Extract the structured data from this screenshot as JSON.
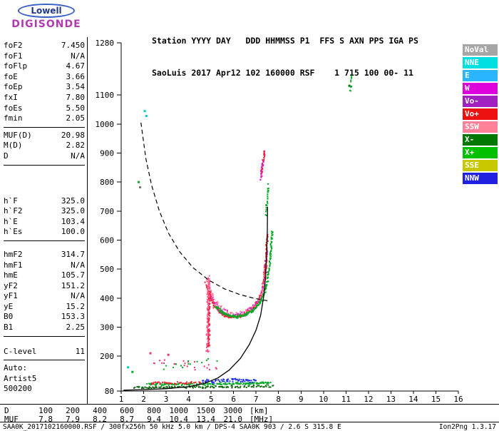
{
  "logo": {
    "line1": "Lowell",
    "line2": "DIGISONDE"
  },
  "header": {
    "line1": "Station YYYY DAY   DDD HHMMSS P1  FFS S AXN PPS IGA PS",
    "line2": "SaoLuis 2017 Apr12 102 160000 RSF    1 715 100 00- 11"
  },
  "params": {
    "groups": [
      {
        "rows": [
          [
            "foF2",
            "7.450"
          ],
          [
            "foF1",
            "N/A"
          ],
          [
            "foFlp",
            "4.67"
          ],
          [
            "foE",
            "3.66"
          ],
          [
            "foEp",
            "3.54"
          ],
          [
            "fxI",
            "7.80"
          ],
          [
            "foEs",
            "5.50"
          ],
          [
            "fmin",
            "2.05"
          ]
        ]
      },
      {
        "rows": [
          [
            "MUF(D)",
            "20.98"
          ],
          [
            "M(D)",
            "2.82"
          ],
          [
            "D",
            "N/A"
          ]
        ]
      },
      {
        "rows": [
          [
            "h`F",
            "325.0"
          ],
          [
            "h`F2",
            "325.0"
          ],
          [
            "h`E",
            "103.4"
          ],
          [
            "h`Es",
            "100.0"
          ]
        ]
      },
      {
        "rows": [
          [
            "hmF2",
            "314.7"
          ],
          [
            "hmF1",
            "N/A"
          ],
          [
            "hmE",
            "105.7"
          ],
          [
            "yF2",
            "151.2"
          ],
          [
            "yF1",
            "N/A"
          ],
          [
            "yE",
            "15.2"
          ],
          [
            "B0",
            "153.3"
          ],
          [
            "B1",
            "2.25"
          ]
        ]
      },
      {
        "rows": [
          [
            "C-level",
            "11"
          ]
        ]
      },
      {
        "rows": [
          [
            "Auto:",
            ""
          ],
          [
            "Artist5",
            ""
          ],
          [
            "500200",
            ""
          ]
        ]
      }
    ]
  },
  "legend": {
    "items": [
      {
        "label": "NoVal",
        "color": "#a6a6a6"
      },
      {
        "label": "NNE",
        "color": "#00e0e0"
      },
      {
        "label": "E",
        "color": "#2bb5ff"
      },
      {
        "label": "W",
        "color": "#dd00dd"
      },
      {
        "label": "Vo-",
        "color": "#a020c0"
      },
      {
        "label": "Vo+",
        "color": "#ee1111"
      },
      {
        "label": "SSW",
        "color": "#ff8099"
      },
      {
        "label": "X-",
        "color": "#007700"
      },
      {
        "label": "X+",
        "color": "#00c000"
      },
      {
        "label": "SSE",
        "color": "#c8c800"
      },
      {
        "label": "NNW",
        "color": "#2020e0"
      }
    ]
  },
  "distance_row": {
    "label": "D",
    "values": [
      "100",
      "200",
      "400",
      "600",
      "800",
      "1000",
      "1500",
      "3000"
    ],
    "unit": "[km]"
  },
  "muf_row": {
    "label": "MUF",
    "values": [
      "7.8",
      "7.9",
      "8.2",
      "8.7",
      "9.4",
      "10.4",
      "13.4",
      "21.0"
    ],
    "unit": "[MHz]"
  },
  "footer": {
    "left": "SAA0K_2017102160000.RSF / 300fx256h 50 kHz 5.0 km / DPS-4 SAA0K 903 / 2.6 S 315.8 E",
    "right": "Ion2Png 1.3.17"
  },
  "chart_data": {
    "type": "scatter",
    "title": "Ionogram SaoLuis 2017 Apr12 102 160000",
    "xlabel": "[MHz]",
    "ylabel": "[km]",
    "xlim": [
      1,
      16
    ],
    "ylim": [
      80,
      1280
    ],
    "x_ticks": [
      1,
      2,
      3,
      4,
      5,
      6,
      7,
      8,
      9,
      10,
      11,
      12,
      13,
      14,
      15,
      16
    ],
    "y_ticks": [
      80,
      200,
      300,
      400,
      500,
      600,
      700,
      800,
      900,
      1000,
      1100,
      1280
    ],
    "grid": false,
    "legend_position": "right-outside",
    "curves": {
      "muf_transmission_dashed": [
        [
          1.88,
          1005
        ],
        [
          2.1,
          880
        ],
        [
          2.35,
          790
        ],
        [
          2.7,
          700
        ],
        [
          3.1,
          625
        ],
        [
          3.6,
          560
        ],
        [
          4.2,
          505
        ],
        [
          4.9,
          462
        ],
        [
          5.6,
          432
        ],
        [
          6.3,
          412
        ],
        [
          6.9,
          400
        ],
        [
          7.35,
          393
        ],
        [
          7.55,
          391
        ]
      ],
      "true_height_profile_solid": [
        [
          1.1,
          83
        ],
        [
          2.0,
          85
        ],
        [
          3.0,
          88
        ],
        [
          4.0,
          95
        ],
        [
          4.7,
          106
        ],
        [
          5.3,
          125
        ],
        [
          5.8,
          152
        ],
        [
          6.3,
          192
        ],
        [
          6.7,
          240
        ],
        [
          7.0,
          290
        ],
        [
          7.2,
          340
        ],
        [
          7.33,
          400
        ],
        [
          7.42,
          470
        ],
        [
          7.47,
          550
        ],
        [
          7.5,
          630
        ],
        [
          7.51,
          715
        ]
      ]
    },
    "series": [
      {
        "name": "f-trace-O-red",
        "color": "#ee2233",
        "n": 240,
        "jx": 0.05,
        "jy": 7,
        "path": [
          [
            4.78,
            450
          ],
          [
            4.95,
            405
          ],
          [
            5.15,
            372
          ],
          [
            5.4,
            350
          ],
          [
            5.7,
            338
          ],
          [
            6.0,
            334
          ],
          [
            6.3,
            338
          ],
          [
            6.6,
            350
          ],
          [
            6.9,
            368
          ],
          [
            7.1,
            392
          ],
          [
            7.25,
            425
          ],
          [
            7.35,
            465
          ],
          [
            7.42,
            515
          ],
          [
            7.47,
            570
          ],
          [
            7.5,
            620
          ]
        ]
      },
      {
        "name": "f-trace-O-pink",
        "color": "#ff7799",
        "n": 120,
        "jx": 0.06,
        "jy": 14,
        "path": [
          [
            4.8,
            470
          ],
          [
            5.0,
            420
          ],
          [
            5.2,
            385
          ],
          [
            5.5,
            360
          ],
          [
            5.9,
            345
          ],
          [
            6.3,
            345
          ],
          [
            6.7,
            358
          ],
          [
            7.0,
            375
          ],
          [
            7.2,
            400
          ],
          [
            7.35,
            440
          ],
          [
            7.45,
            500
          ],
          [
            7.5,
            560
          ]
        ]
      },
      {
        "name": "f-trace-magenta",
        "color": "#dd22cc",
        "n": 55,
        "jx": 0.07,
        "jy": 12,
        "path": [
          [
            5.0,
            400
          ],
          [
            5.4,
            360
          ],
          [
            5.9,
            342
          ],
          [
            6.4,
            344
          ],
          [
            6.9,
            366
          ],
          [
            7.2,
            400
          ],
          [
            7.4,
            470
          ],
          [
            7.48,
            560
          ]
        ]
      },
      {
        "name": "f-trace-X-green",
        "color": "#00aa22",
        "n": 200,
        "jx": 0.05,
        "jy": 6,
        "path": [
          [
            5.2,
            372
          ],
          [
            5.5,
            350
          ],
          [
            5.85,
            338
          ],
          [
            6.2,
            336
          ],
          [
            6.55,
            344
          ],
          [
            6.9,
            360
          ],
          [
            7.15,
            382
          ],
          [
            7.35,
            412
          ],
          [
            7.5,
            455
          ],
          [
            7.6,
            510
          ],
          [
            7.67,
            570
          ],
          [
            7.72,
            630
          ]
        ]
      },
      {
        "name": "spread-f-column-pink",
        "color": "#ff5588",
        "n": 130,
        "jx": 0.08,
        "jy": 10,
        "path": [
          [
            4.84,
            215
          ],
          [
            4.86,
            300
          ],
          [
            4.88,
            390
          ],
          [
            4.9,
            470
          ]
        ]
      },
      {
        "name": "spread-f-column-red",
        "color": "#ee2244",
        "n": 50,
        "jx": 0.06,
        "jy": 10,
        "path": [
          [
            4.9,
            230
          ],
          [
            4.92,
            330
          ],
          [
            4.95,
            420
          ]
        ]
      },
      {
        "name": "second-hop-red",
        "color": "#ee2244",
        "n": 45,
        "jx": 0.05,
        "jy": 8,
        "path": [
          [
            7.22,
            820
          ],
          [
            7.28,
            850
          ],
          [
            7.33,
            880
          ],
          [
            7.38,
            905
          ]
        ]
      },
      {
        "name": "second-hop-magenta",
        "color": "#dd22cc",
        "n": 14,
        "jx": 0.05,
        "jy": 8,
        "path": [
          [
            7.2,
            810
          ],
          [
            7.3,
            870
          ]
        ]
      },
      {
        "name": "upper-green",
        "color": "#00aa22",
        "n": 22,
        "jx": 0.04,
        "jy": 10,
        "path": [
          [
            7.45,
            690
          ],
          [
            7.5,
            740
          ],
          [
            7.55,
            790
          ]
        ]
      },
      {
        "name": "topright-green",
        "color": "#00aa22",
        "n": 10,
        "jx": 0.03,
        "jy": 12,
        "path": [
          [
            11.2,
            1120
          ],
          [
            11.25,
            1160
          ]
        ]
      },
      {
        "name": "e-layer-green",
        "color": "#00aa22",
        "n": 160,
        "jx": 0.08,
        "jy": 5,
        "path": [
          [
            2.2,
            103
          ],
          [
            3.5,
            104
          ],
          [
            5.0,
            105
          ],
          [
            6.5,
            106
          ],
          [
            7.6,
            107
          ]
        ]
      },
      {
        "name": "e-layer-dark-green",
        "color": "#116611",
        "n": 120,
        "jx": 0.08,
        "jy": 5,
        "path": [
          [
            1.6,
            92
          ],
          [
            3.0,
            93
          ],
          [
            4.5,
            94
          ],
          [
            6.0,
            95
          ],
          [
            7.8,
            96
          ]
        ]
      },
      {
        "name": "e-layer-blue",
        "color": "#2233ee",
        "n": 70,
        "jx": 0.1,
        "jy": 8,
        "path": [
          [
            4.6,
            112
          ],
          [
            5.4,
            116
          ],
          [
            6.2,
            118
          ],
          [
            7.0,
            115
          ]
        ]
      },
      {
        "name": "e-layer-red",
        "color": "#ee2233",
        "n": 40,
        "jx": 0.1,
        "jy": 5,
        "path": [
          [
            2.3,
            108
          ],
          [
            3.4,
            108
          ],
          [
            4.5,
            109
          ]
        ]
      },
      {
        "name": "mid-sporadic-pink",
        "color": "#ee3366",
        "n": 22,
        "jx": 0.35,
        "jy": 22,
        "path": [
          [
            2.5,
            175
          ],
          [
            3.4,
            185
          ],
          [
            4.4,
            170
          ],
          [
            5.2,
            165
          ]
        ]
      },
      {
        "name": "mid-sporadic-green",
        "color": "#00aa22",
        "n": 14,
        "jx": 0.3,
        "jy": 18,
        "path": [
          [
            2.8,
            160
          ],
          [
            4.0,
            175
          ],
          [
            5.0,
            190
          ]
        ]
      }
    ],
    "points": [
      {
        "x": 2.05,
        "y": 1045,
        "c": "#00cccc"
      },
      {
        "x": 2.12,
        "y": 1028,
        "c": "#00cccc"
      },
      {
        "x": 1.78,
        "y": 800,
        "c": "#00aa22"
      },
      {
        "x": 1.84,
        "y": 782,
        "c": "#777777"
      },
      {
        "x": 1.3,
        "y": 162,
        "c": "#00cccc"
      },
      {
        "x": 1.5,
        "y": 146,
        "c": "#00aa22"
      },
      {
        "x": 2.3,
        "y": 210,
        "c": "#ee3366"
      },
      {
        "x": 3.1,
        "y": 205,
        "c": "#ee3366"
      },
      {
        "x": 11.15,
        "y": 1132,
        "c": "#007700"
      }
    ]
  }
}
